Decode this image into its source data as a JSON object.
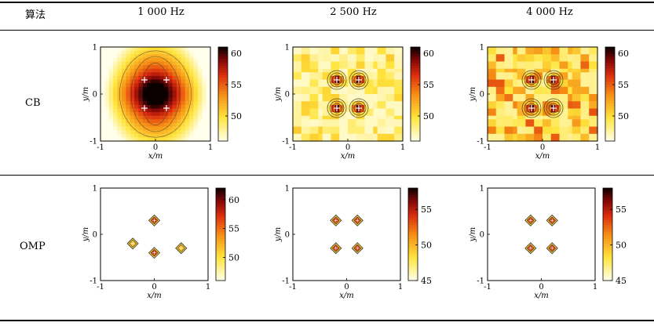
{
  "table": {
    "header": [
      "算法",
      "1 000 Hz",
      "2 500 Hz",
      "4 000 Hz"
    ],
    "rows": [
      "CB",
      "OMP"
    ]
  },
  "axes": {
    "xlabel": "x/m",
    "ylabel": "y/m",
    "xticks": [
      "-1",
      "0",
      "1"
    ],
    "yticks": [
      "-1",
      "0",
      "1"
    ]
  },
  "chart_data": [
    {
      "type": "heatmap",
      "row": "CB",
      "frequency": "1 000 Hz",
      "xlim": [
        -1,
        1
      ],
      "ylim": [
        -1,
        1
      ],
      "colorbar_ticks": [
        "60",
        "55",
        "50"
      ],
      "colorbar_range": [
        46,
        61
      ],
      "sources": [
        [
          -0.2,
          0.3
        ],
        [
          0.2,
          0.3
        ],
        [
          -0.2,
          -0.3
        ],
        [
          0.2,
          -0.3
        ]
      ]
    },
    {
      "type": "heatmap",
      "row": "CB",
      "frequency": "2 500 Hz",
      "xlim": [
        -1,
        1
      ],
      "ylim": [
        -1,
        1
      ],
      "colorbar_ticks": [
        "60",
        "55",
        "50"
      ],
      "colorbar_range": [
        46,
        61
      ],
      "sources": [
        [
          -0.2,
          0.3
        ],
        [
          0.2,
          0.3
        ],
        [
          -0.2,
          -0.3
        ],
        [
          0.2,
          -0.3
        ]
      ]
    },
    {
      "type": "heatmap",
      "row": "CB",
      "frequency": "4 000 Hz",
      "xlim": [
        -1,
        1
      ],
      "ylim": [
        -1,
        1
      ],
      "colorbar_ticks": [
        "60",
        "55",
        "50"
      ],
      "colorbar_range": [
        46,
        61
      ],
      "sources": [
        [
          -0.2,
          0.3
        ],
        [
          0.2,
          0.3
        ],
        [
          -0.2,
          -0.3
        ],
        [
          0.2,
          -0.3
        ]
      ]
    },
    {
      "type": "heatmap",
      "row": "OMP",
      "frequency": "1 000 Hz",
      "xlim": [
        -1,
        1
      ],
      "ylim": [
        -1,
        1
      ],
      "colorbar_ticks": [
        "60",
        "55",
        "50"
      ],
      "colorbar_range": [
        46,
        62
      ],
      "sources": [
        [
          0,
          0.3
        ],
        [
          0,
          -0.4
        ],
        [
          -0.4,
          -0.2
        ],
        [
          0.5,
          -0.3
        ]
      ]
    },
    {
      "type": "heatmap",
      "row": "OMP",
      "frequency": "2 500 Hz",
      "xlim": [
        -1,
        1
      ],
      "ylim": [
        -1,
        1
      ],
      "colorbar_ticks": [
        "55",
        "50",
        "45"
      ],
      "colorbar_range": [
        45,
        58
      ],
      "sources": [
        [
          -0.2,
          0.3
        ],
        [
          0.2,
          0.3
        ],
        [
          -0.2,
          -0.3
        ],
        [
          0.2,
          -0.3
        ]
      ]
    },
    {
      "type": "heatmap",
      "row": "OMP",
      "frequency": "4 000 Hz",
      "xlim": [
        -1,
        1
      ],
      "ylim": [
        -1,
        1
      ],
      "colorbar_ticks": [
        "55",
        "50",
        "45"
      ],
      "colorbar_range": [
        45,
        58
      ],
      "sources": [
        [
          -0.2,
          0.3
        ],
        [
          0.2,
          0.3
        ],
        [
          -0.2,
          -0.3
        ],
        [
          0.2,
          -0.3
        ]
      ]
    }
  ]
}
